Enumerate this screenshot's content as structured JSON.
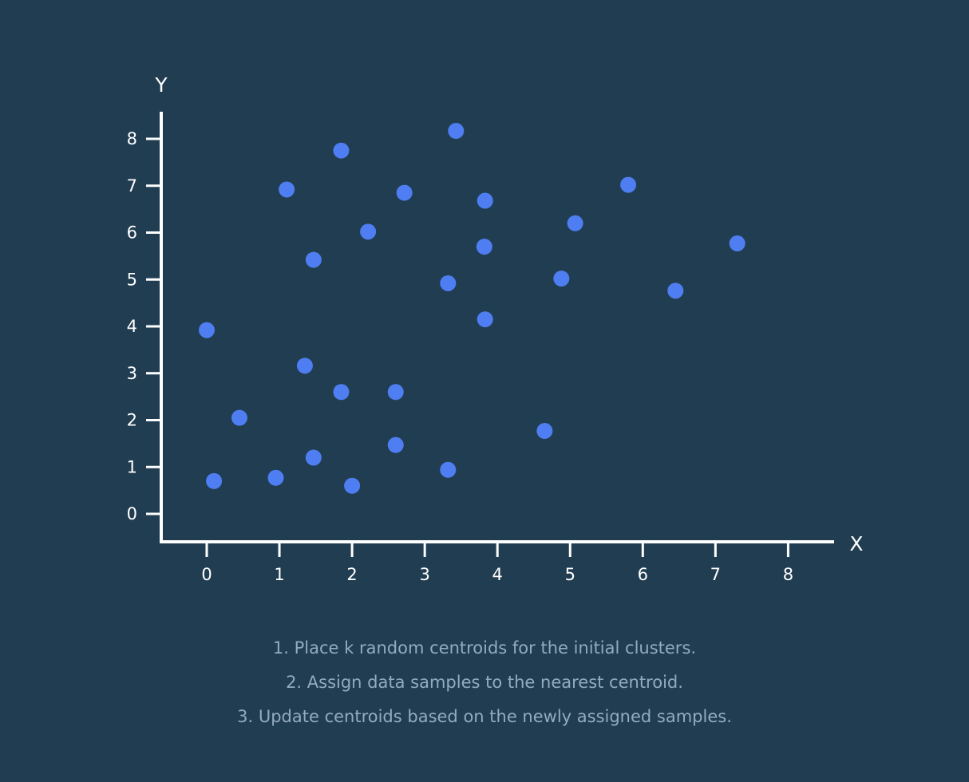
{
  "chart_data": {
    "type": "scatter",
    "title": "",
    "xlabel": "X",
    "ylabel": "Y",
    "xlim": [
      -0.6,
      8.6
    ],
    "ylim": [
      -0.6,
      8.6
    ],
    "xticks": [
      0,
      1,
      2,
      3,
      4,
      5,
      6,
      7,
      8
    ],
    "yticks": [
      0,
      1,
      2,
      3,
      4,
      5,
      6,
      7,
      8
    ],
    "grid": false,
    "colors": {
      "background": "#213d52",
      "point": "#4e7ef1",
      "axis": "#ffffff",
      "text": "#93abbe"
    },
    "points": [
      {
        "x": 0.0,
        "y": 3.92
      },
      {
        "x": 0.1,
        "y": 0.7
      },
      {
        "x": 0.45,
        "y": 2.05
      },
      {
        "x": 0.95,
        "y": 0.77
      },
      {
        "x": 1.1,
        "y": 6.92
      },
      {
        "x": 1.35,
        "y": 3.16
      },
      {
        "x": 1.47,
        "y": 5.42
      },
      {
        "x": 1.47,
        "y": 1.2
      },
      {
        "x": 1.85,
        "y": 7.75
      },
      {
        "x": 1.85,
        "y": 2.6
      },
      {
        "x": 2.0,
        "y": 0.6
      },
      {
        "x": 2.22,
        "y": 6.02
      },
      {
        "x": 2.6,
        "y": 2.6
      },
      {
        "x": 2.6,
        "y": 1.47
      },
      {
        "x": 2.72,
        "y": 6.85
      },
      {
        "x": 3.32,
        "y": 4.92
      },
      {
        "x": 3.32,
        "y": 0.94
      },
      {
        "x": 3.43,
        "y": 8.17
      },
      {
        "x": 3.82,
        "y": 5.7
      },
      {
        "x": 3.83,
        "y": 6.68
      },
      {
        "x": 3.83,
        "y": 4.15
      },
      {
        "x": 4.65,
        "y": 1.77
      },
      {
        "x": 4.88,
        "y": 5.02
      },
      {
        "x": 5.07,
        "y": 6.2
      },
      {
        "x": 5.8,
        "y": 7.02
      },
      {
        "x": 6.45,
        "y": 4.76
      },
      {
        "x": 7.3,
        "y": 5.77
      }
    ]
  },
  "steps": [
    "1. Place k random centroids for the initial clusters.",
    "2. Assign data samples to the nearest centroid.",
    "3. Update centroids based on the newly assigned samples."
  ]
}
